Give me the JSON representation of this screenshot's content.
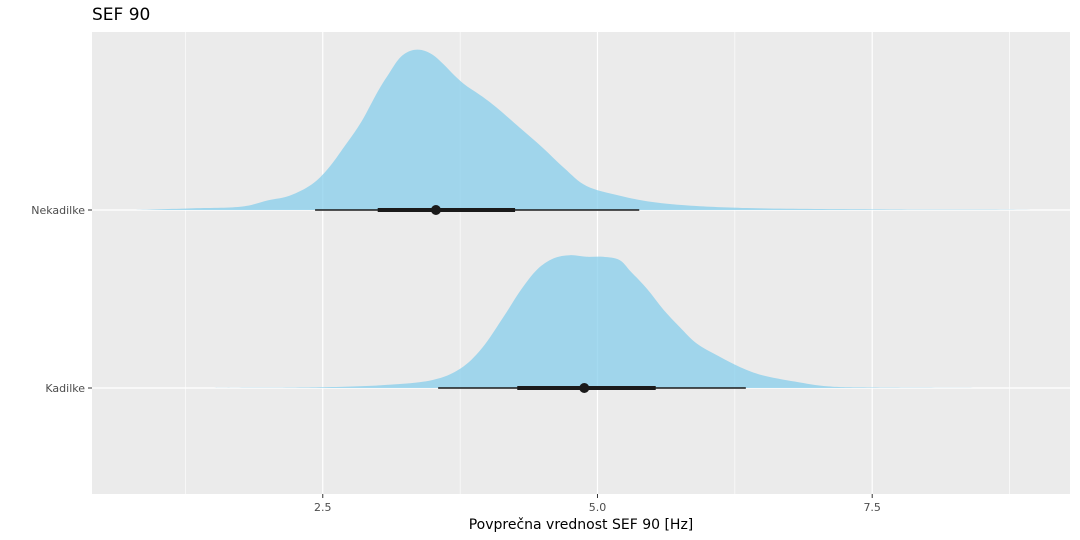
{
  "chart_data": {
    "type": "area",
    "subtype": "halfeye-density",
    "title": "SEF 90",
    "xlabel": "Povprečna vrednost SEF 90 [Hz]",
    "ylabel": "",
    "xlim": [
      0.4,
      9.3
    ],
    "x_ticks": [
      2.5,
      5.0,
      7.5
    ],
    "x_tick_labels": [
      "2.5",
      "5.0",
      "7.5"
    ],
    "x_minor_ticks": [
      1.25,
      3.75,
      6.25,
      8.75
    ],
    "grid": true,
    "legend": "none",
    "colors": {
      "density_fill": "#87CEEB",
      "panel": "#EBEBEB",
      "grid": "#FFFFFF",
      "interval": "#1a1a1a"
    },
    "groups": [
      {
        "category": "Nekadilke",
        "point": 3.53,
        "interval_66": [
          3.0,
          4.25
        ],
        "interval_95": [
          2.43,
          5.38
        ],
        "density": {
          "x": [
            0.8,
            1.3,
            1.75,
            2.0,
            2.2,
            2.4,
            2.55,
            2.7,
            2.85,
            3.0,
            3.1,
            3.2,
            3.3,
            3.4,
            3.5,
            3.6,
            3.7,
            3.8,
            3.95,
            4.1,
            4.3,
            4.5,
            4.7,
            4.9,
            5.2,
            5.5,
            5.9,
            6.5,
            7.5,
            8.5,
            9.1
          ],
          "y": [
            0.0,
            0.01,
            0.02,
            0.06,
            0.09,
            0.16,
            0.26,
            0.4,
            0.55,
            0.74,
            0.85,
            0.95,
            0.995,
            1.0,
            0.97,
            0.91,
            0.84,
            0.78,
            0.71,
            0.63,
            0.51,
            0.39,
            0.26,
            0.15,
            0.09,
            0.05,
            0.025,
            0.01,
            0.004,
            0.002,
            0.0
          ]
        }
      },
      {
        "category": "Kadilke",
        "point": 4.88,
        "interval_66": [
          4.27,
          5.53
        ],
        "interval_95": [
          3.55,
          6.35
        ],
        "density": {
          "x": [
            1.5,
            2.5,
            3.1,
            3.5,
            3.75,
            3.95,
            4.15,
            4.3,
            4.45,
            4.6,
            4.75,
            4.9,
            5.05,
            5.2,
            5.3,
            5.45,
            5.6,
            5.75,
            5.9,
            6.1,
            6.3,
            6.5,
            6.8,
            7.1,
            7.5,
            8.5
          ],
          "y": [
            0.0,
            0.005,
            0.02,
            0.05,
            0.12,
            0.25,
            0.45,
            0.61,
            0.74,
            0.81,
            0.83,
            0.82,
            0.82,
            0.8,
            0.73,
            0.62,
            0.49,
            0.38,
            0.28,
            0.2,
            0.13,
            0.08,
            0.04,
            0.01,
            0.003,
            0.0
          ]
        }
      }
    ]
  }
}
